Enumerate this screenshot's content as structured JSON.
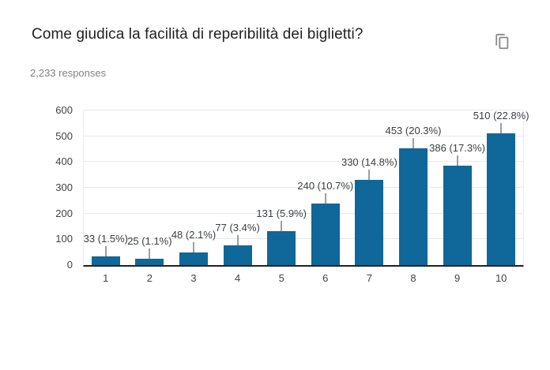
{
  "header": {
    "title": "Come giudica la facilità di reperibilità dei biglietti?",
    "responses": "2,233 responses",
    "copy_icon": "copy-icon",
    "copy_icon_color": "#8a8a8a"
  },
  "chart_data": {
    "type": "bar",
    "title": "Come giudica la facilità di reperibilità dei biglietti?",
    "subtitle": "2,233 responses",
    "categories": [
      "1",
      "2",
      "3",
      "4",
      "5",
      "6",
      "7",
      "8",
      "9",
      "10"
    ],
    "values": [
      33,
      25,
      48,
      77,
      131,
      240,
      330,
      453,
      386,
      510
    ],
    "percentages": [
      1.5,
      1.1,
      2.1,
      3.4,
      5.9,
      10.7,
      14.8,
      20.3,
      17.3,
      22.8
    ],
    "point_labels": [
      "33 (1.5%)",
      "25 (1.1%)",
      "48 (2.1%)",
      "77 (3.4%)",
      "131 (5.9%)",
      "240 (10.7%)",
      "330 (14.8%)",
      "453 (20.3%)",
      "386 (17.3%)",
      "510 (22.8%)"
    ],
    "xlabel": "",
    "ylabel": "",
    "ylim": [
      0,
      600
    ],
    "yticks": [
      0,
      100,
      200,
      300,
      400,
      500,
      600
    ],
    "grid": true,
    "legend": "none",
    "bar_color": "#106799",
    "annotation_stem_color": "#9e9e9e",
    "gridline_color": "#e9e9e9",
    "axis_line_color": "#212121"
  }
}
